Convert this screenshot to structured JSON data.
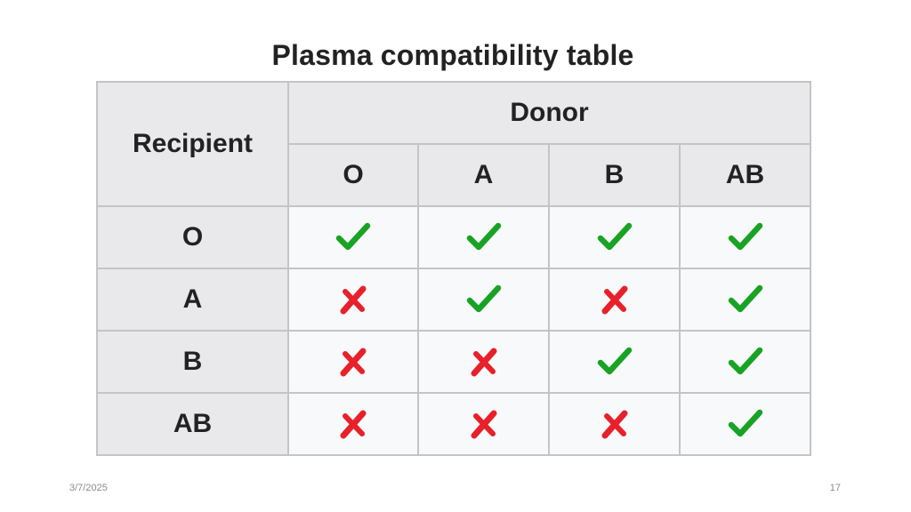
{
  "slide": {
    "title": "Plasma compatibility table",
    "date": "3/7/2025",
    "page_number": "17"
  },
  "table": {
    "corner_label": "Recipient",
    "donor_label": "Donor",
    "donor_types": [
      "O",
      "A",
      "B",
      "AB"
    ],
    "rows": [
      {
        "recipient": "O",
        "compatible": [
          true,
          true,
          true,
          true
        ]
      },
      {
        "recipient": "A",
        "compatible": [
          false,
          true,
          false,
          true
        ]
      },
      {
        "recipient": "B",
        "compatible": [
          false,
          false,
          true,
          true
        ]
      },
      {
        "recipient": "AB",
        "compatible": [
          false,
          false,
          false,
          true
        ]
      }
    ]
  },
  "colors": {
    "check": "#18a324",
    "cross": "#e8202a",
    "header_bg": "#e9e9ec",
    "cell_bg": "#f8f9fa",
    "border": "#c4c4c4"
  },
  "icons": {
    "compatible": "check-icon",
    "incompatible": "cross-icon"
  }
}
